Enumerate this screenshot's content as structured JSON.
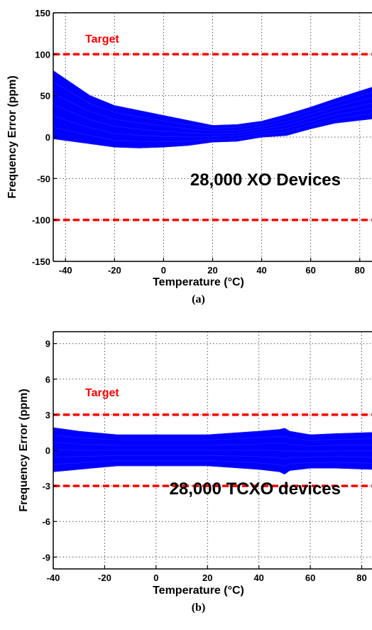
{
  "chart_data": [
    {
      "type": "line",
      "panel_label": "(a)",
      "xlabel": "Temperature (°C)",
      "ylabel": "Frequency Error (ppm)",
      "xlim": [
        -45,
        85
      ],
      "ylim": [
        -150,
        150
      ],
      "xticks": [
        -40,
        -20,
        0,
        20,
        40,
        60,
        80
      ],
      "yticks": [
        -150,
        -100,
        -50,
        0,
        50,
        100,
        150
      ],
      "grid": true,
      "annotation": "28,000 XO Devices",
      "target_label": "Target",
      "target_lines": [
        100,
        -100
      ],
      "band": {
        "x": [
          -45,
          -30,
          -20,
          -10,
          0,
          10,
          20,
          30,
          40,
          50,
          60,
          70,
          85
        ],
        "upper": [
          80,
          50,
          38,
          32,
          26,
          20,
          14,
          15,
          19,
          27,
          36,
          46,
          60
        ],
        "lower": [
          -2,
          -8,
          -12,
          -13,
          -12,
          -10,
          -6,
          -5,
          0,
          2,
          10,
          17,
          22
        ]
      },
      "colors": {
        "band": "#0000ff",
        "target": "#ff0000",
        "grid": "#555555"
      }
    },
    {
      "type": "line",
      "panel_label": "(b)",
      "xlabel": "Temperature (°C)",
      "ylabel": "Frequency Error (ppm)",
      "xlim": [
        -40,
        84
      ],
      "ylim": [
        -10,
        10
      ],
      "xticks": [
        -40,
        -20,
        0,
        20,
        40,
        60,
        80
      ],
      "yticks": [
        -9,
        -6,
        -3,
        0,
        3,
        6,
        9
      ],
      "grid": true,
      "annotation": "28,000 TCXO devices",
      "target_label": "Target",
      "target_lines": [
        3,
        -3
      ],
      "band": {
        "x": [
          -40,
          -30,
          -20,
          -15,
          0,
          20,
          40,
          48,
          50,
          52,
          60,
          70,
          84
        ],
        "upper": [
          1.9,
          1.6,
          1.4,
          1.3,
          1.3,
          1.3,
          1.6,
          1.75,
          1.85,
          1.6,
          1.3,
          1.4,
          1.5
        ],
        "lower": [
          -1.8,
          -1.6,
          -1.4,
          -1.3,
          -1.3,
          -1.3,
          -1.6,
          -1.8,
          -2.0,
          -1.7,
          -1.5,
          -1.5,
          -1.6
        ]
      },
      "colors": {
        "band": "#0000ff",
        "target": "#ff0000",
        "grid": "#555555"
      }
    }
  ]
}
